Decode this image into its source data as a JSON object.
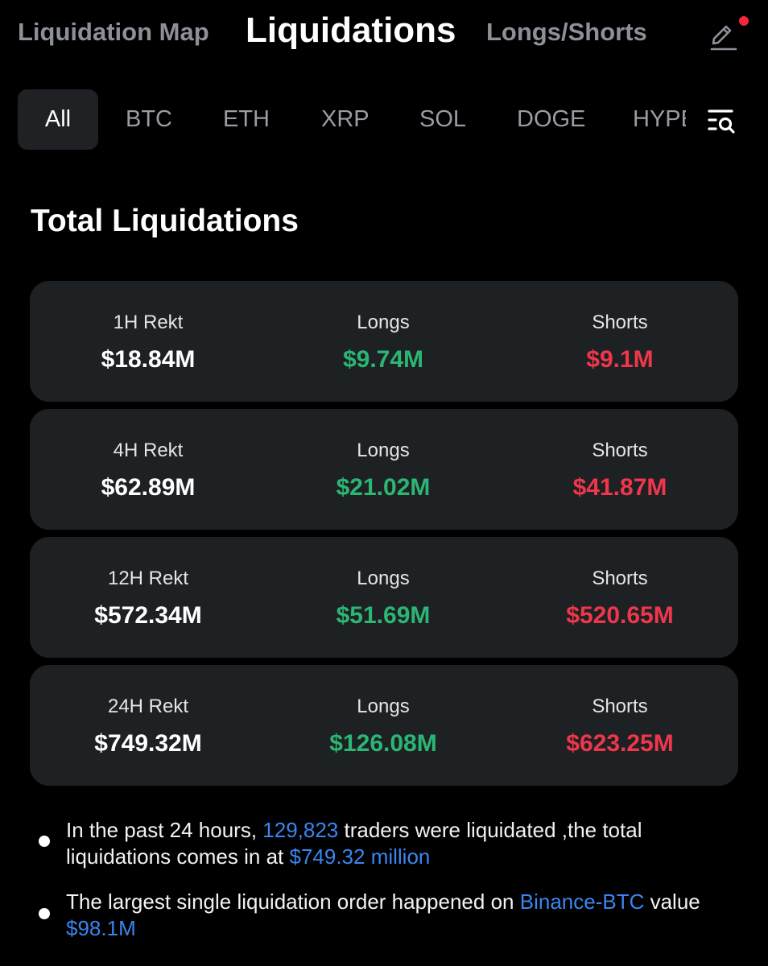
{
  "top_tabs": [
    {
      "label": "Liquidation Map",
      "active": false
    },
    {
      "label": "Liquidations",
      "active": true
    },
    {
      "label": "Longs/Shorts",
      "active": false
    }
  ],
  "coin_tabs": [
    "All",
    "BTC",
    "ETH",
    "XRP",
    "SOL",
    "DOGE",
    "HYPE"
  ],
  "active_coin": "All",
  "section_title": "Total Liquidations",
  "cards": [
    {
      "total_label": "1H Rekt",
      "total": "$18.84M",
      "longs_label": "Longs",
      "longs": "$9.74M",
      "shorts_label": "Shorts",
      "shorts": "$9.1M"
    },
    {
      "total_label": "4H Rekt",
      "total": "$62.89M",
      "longs_label": "Longs",
      "longs": "$21.02M",
      "shorts_label": "Shorts",
      "shorts": "$41.87M"
    },
    {
      "total_label": "12H Rekt",
      "total": "$572.34M",
      "longs_label": "Longs",
      "longs": "$51.69M",
      "shorts_label": "Shorts",
      "shorts": "$520.65M"
    },
    {
      "total_label": "24H Rekt",
      "total": "$749.32M",
      "longs_label": "Longs",
      "longs": "$126.08M",
      "shorts_label": "Shorts",
      "shorts": "$623.25M"
    }
  ],
  "notes": {
    "n1_pre": "In the past 24 hours, ",
    "n1_traders": "129,823",
    "n1_mid": " traders were liquidated ,the total liquidations comes in at ",
    "n1_amount": "$749.32 million",
    "n2_pre": "The largest single liquidation order happened on ",
    "n2_exchange": "Binance-BTC",
    "n2_mid": " value ",
    "n2_value": "$98.1M"
  },
  "colors": {
    "long": "#2bb673",
    "short": "#f0364b",
    "link": "#3a86f0",
    "card_bg": "#1e2124",
    "notification": "#f0283c"
  },
  "icons": {
    "edit": "pencil-icon",
    "filter": "filter-search-icon"
  }
}
